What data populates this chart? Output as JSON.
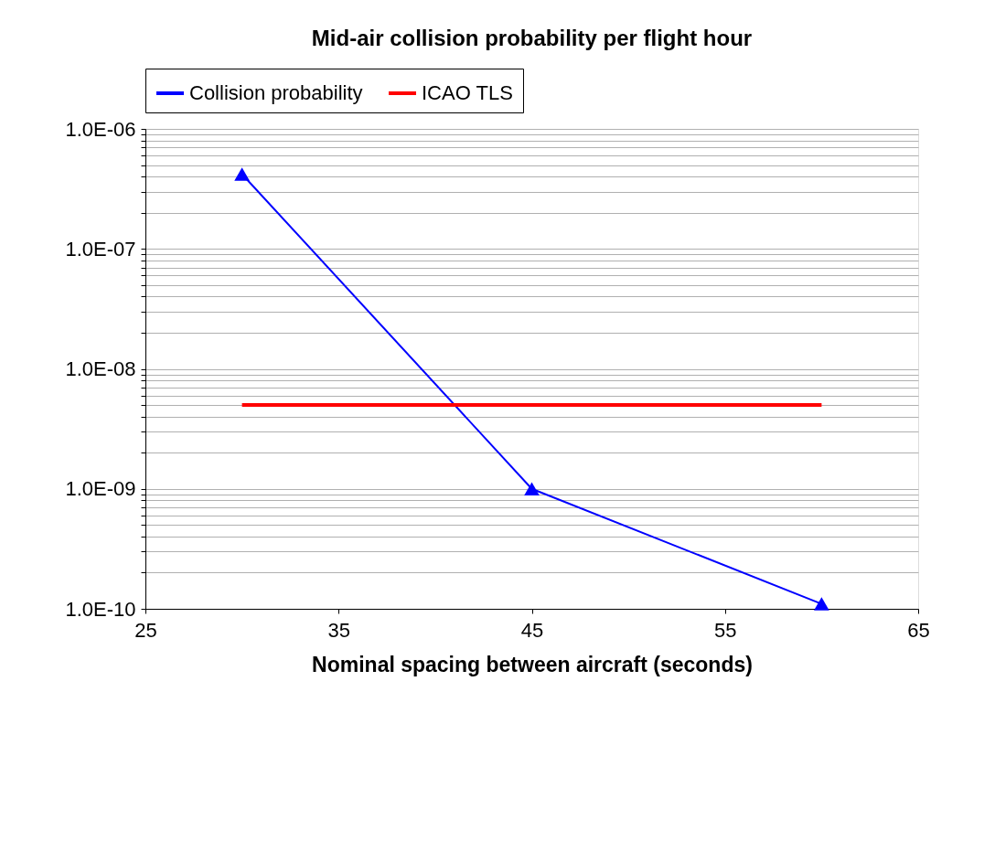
{
  "chart_data": {
    "type": "line",
    "title": "Mid-air collision probability per flight hour",
    "xlabel": "Nominal spacing between aircraft (seconds)",
    "log": "y",
    "grid": "y",
    "legend": "top",
    "series": [
      {
        "name": "Collision probability",
        "color": "#0000ff",
        "x": [
          30,
          45,
          60
        ],
        "values": [
          4.2e-07,
          1e-09,
          1.1e-10
        ],
        "marker": "triangle"
      },
      {
        "name": "ICAO TLS",
        "color": "#ff0000",
        "x": [
          30,
          60
        ],
        "values": [
          5e-09,
          5e-09
        ],
        "marker": "none"
      }
    ],
    "xlim": [
      25,
      65
    ],
    "xticks": [
      25,
      35,
      45,
      55,
      65
    ],
    "ylim": [
      1e-10,
      1e-06
    ],
    "yticks": [
      {
        "value": 1e-10,
        "label": "1.0E-10"
      },
      {
        "value": 2e-10,
        "label": null
      },
      {
        "value": 3e-10,
        "label": null
      },
      {
        "value": 4e-10,
        "label": null
      },
      {
        "value": 5e-10,
        "label": null
      },
      {
        "value": 6e-10,
        "label": null
      },
      {
        "value": 7e-10,
        "label": null
      },
      {
        "value": 8e-10,
        "label": null
      },
      {
        "value": 9e-10,
        "label": null
      },
      {
        "value": 1e-09,
        "label": "1.0E-09"
      },
      {
        "value": 2e-09,
        "label": null
      },
      {
        "value": 3e-09,
        "label": null
      },
      {
        "value": 4e-09,
        "label": null
      },
      {
        "value": 5e-09,
        "label": null
      },
      {
        "value": 6e-09,
        "label": null
      },
      {
        "value": 7e-09,
        "label": null
      },
      {
        "value": 8e-09,
        "label": null
      },
      {
        "value": 9e-09,
        "label": null
      },
      {
        "value": 1e-08,
        "label": "1.0E-08"
      },
      {
        "value": 2e-08,
        "label": null
      },
      {
        "value": 3e-08,
        "label": null
      },
      {
        "value": 4e-08,
        "label": null
      },
      {
        "value": 5e-08,
        "label": null
      },
      {
        "value": 6e-08,
        "label": null
      },
      {
        "value": 7e-08,
        "label": null
      },
      {
        "value": 8e-08,
        "label": null
      },
      {
        "value": 9e-08,
        "label": null
      },
      {
        "value": 1e-07,
        "label": "1.0E-07"
      },
      {
        "value": 2e-07,
        "label": null
      },
      {
        "value": 3e-07,
        "label": null
      },
      {
        "value": 4e-07,
        "label": null
      },
      {
        "value": 5e-07,
        "label": null
      },
      {
        "value": 6e-07,
        "label": null
      },
      {
        "value": 7e-07,
        "label": null
      },
      {
        "value": 8e-07,
        "label": null
      },
      {
        "value": 9e-07,
        "label": null
      },
      {
        "value": 1e-06,
        "label": "1.0E-06"
      }
    ]
  }
}
